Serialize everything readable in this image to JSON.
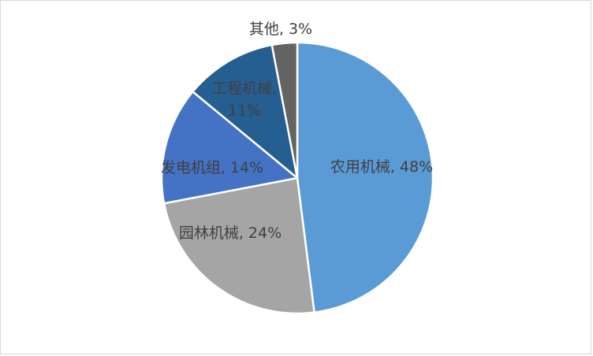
{
  "chart_data": {
    "type": "pie",
    "title": "",
    "legend": "none",
    "unit": "%",
    "categories": [
      "农用机械",
      "园林机械",
      "发电机组",
      "工程机械",
      "其他"
    ],
    "values": [
      48,
      24,
      14,
      11,
      3
    ],
    "slices": [
      {
        "label": "农用机械",
        "value": 48,
        "color": "#5B9BD5",
        "label_display": "农用机械, 48%"
      },
      {
        "label": "园林机械",
        "value": 24,
        "color": "#A5A5A5",
        "label_display": "园林机械, 24%"
      },
      {
        "label": "发电机组",
        "value": 14,
        "color": "#4472C4",
        "label_display": "发电机组, 14%"
      },
      {
        "label": "工程机械",
        "value": 11,
        "color": "#255E91",
        "label_display": "工程机械, 11%"
      },
      {
        "label": "其他",
        "value": 3,
        "color": "#636363",
        "label_display": "其他, 3%"
      }
    ],
    "start_angle_deg": 0,
    "direction": "clockwise",
    "label_color": "#404040",
    "separator_color": "#FFFFFF",
    "background": "#FFFFFF",
    "frame_border_color": "#D9D9D9"
  }
}
